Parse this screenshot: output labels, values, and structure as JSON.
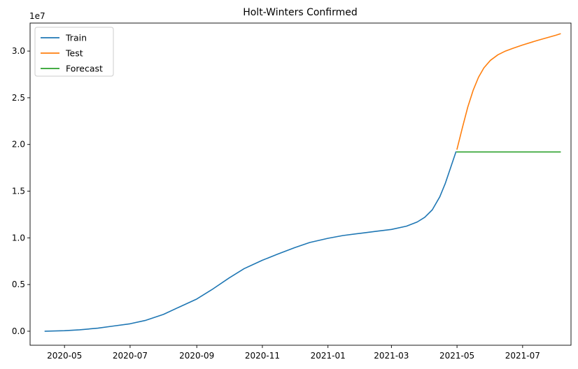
{
  "chart_data": {
    "type": "line",
    "title": "Holt-Winters Confirmed",
    "xlabel": "",
    "ylabel": "",
    "y_offset_label": "1e7",
    "x_axis_type": "date",
    "xlim": [
      "2020-03-30",
      "2021-08-15"
    ],
    "ylim": [
      -1500000,
      33000000
    ],
    "grid": false,
    "legend_placement": "top-left",
    "x_ticks": [
      {
        "date": "2020-05-01",
        "label": "2020-05"
      },
      {
        "date": "2020-07-01",
        "label": "2020-07"
      },
      {
        "date": "2020-09-01",
        "label": "2020-09"
      },
      {
        "date": "2020-11-01",
        "label": "2020-11"
      },
      {
        "date": "2021-01-01",
        "label": "2021-01"
      },
      {
        "date": "2021-03-01",
        "label": "2021-03"
      },
      {
        "date": "2021-05-01",
        "label": "2021-05"
      },
      {
        "date": "2021-07-01",
        "label": "2021-07"
      }
    ],
    "y_ticks": [
      {
        "value": 0,
        "label": "0.0"
      },
      {
        "value": 5000000,
        "label": "0.5"
      },
      {
        "value": 10000000,
        "label": "1.0"
      },
      {
        "value": 15000000,
        "label": "1.5"
      },
      {
        "value": 20000000,
        "label": "2.0"
      },
      {
        "value": 25000000,
        "label": "2.5"
      },
      {
        "value": 30000000,
        "label": "3.0"
      }
    ],
    "series": [
      {
        "name": "Train",
        "color": "#1f77b4",
        "points": [
          [
            "2020-04-13",
            0
          ],
          [
            "2020-05-01",
            60000
          ],
          [
            "2020-05-15",
            150000
          ],
          [
            "2020-06-01",
            330000
          ],
          [
            "2020-06-15",
            550000
          ],
          [
            "2020-07-01",
            800000
          ],
          [
            "2020-07-15",
            1150000
          ],
          [
            "2020-08-01",
            1800000
          ],
          [
            "2020-08-15",
            2550000
          ],
          [
            "2020-09-01",
            3450000
          ],
          [
            "2020-09-15",
            4450000
          ],
          [
            "2020-10-01",
            5700000
          ],
          [
            "2020-10-15",
            6700000
          ],
          [
            "2020-11-01",
            7600000
          ],
          [
            "2020-11-15",
            8250000
          ],
          [
            "2020-12-01",
            8950000
          ],
          [
            "2020-12-15",
            9500000
          ],
          [
            "2021-01-01",
            9950000
          ],
          [
            "2021-01-15",
            10250000
          ],
          [
            "2021-02-01",
            10500000
          ],
          [
            "2021-02-15",
            10700000
          ],
          [
            "2021-03-01",
            10900000
          ],
          [
            "2021-03-15",
            11250000
          ],
          [
            "2021-03-25",
            11700000
          ],
          [
            "2021-04-01",
            12200000
          ],
          [
            "2021-04-08",
            13000000
          ],
          [
            "2021-04-15",
            14400000
          ],
          [
            "2021-04-20",
            15800000
          ],
          [
            "2021-04-25",
            17500000
          ],
          [
            "2021-04-30",
            19200000
          ]
        ]
      },
      {
        "name": "Test",
        "color": "#ff7f0e",
        "points": [
          [
            "2021-05-01",
            19500000
          ],
          [
            "2021-05-06",
            21800000
          ],
          [
            "2021-05-11",
            24000000
          ],
          [
            "2021-05-16",
            25800000
          ],
          [
            "2021-05-21",
            27200000
          ],
          [
            "2021-05-26",
            28200000
          ],
          [
            "2021-06-01",
            29000000
          ],
          [
            "2021-06-08",
            29600000
          ],
          [
            "2021-06-15",
            30000000
          ],
          [
            "2021-06-22",
            30300000
          ],
          [
            "2021-07-01",
            30650000
          ],
          [
            "2021-07-15",
            31150000
          ],
          [
            "2021-08-01",
            31700000
          ],
          [
            "2021-08-05",
            31850000
          ]
        ]
      },
      {
        "name": "Forecast",
        "color": "#2ca02c",
        "points": [
          [
            "2021-05-01",
            19200000
          ],
          [
            "2021-08-05",
            19200000
          ]
        ]
      }
    ]
  }
}
